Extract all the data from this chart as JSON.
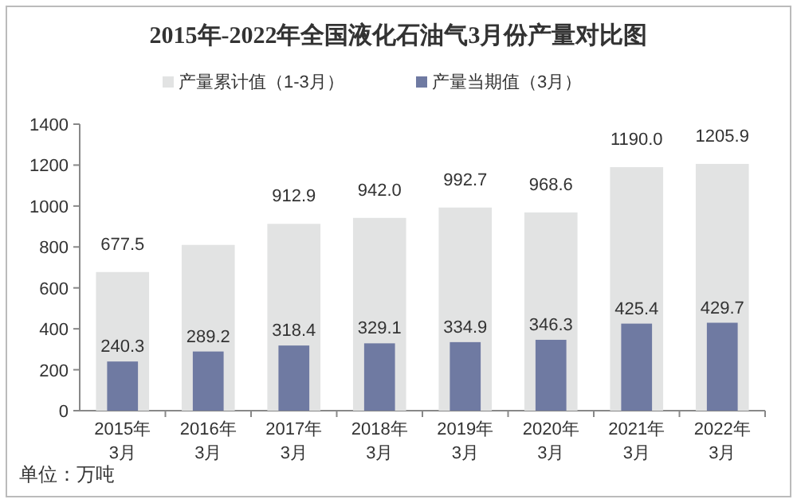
{
  "chart_data": {
    "type": "bar",
    "title": "2015年-2022年全国液化石油气3月份产量对比图",
    "categories": [
      "2015年\n3月",
      "2016年\n3月",
      "2017年\n3月",
      "2018年\n3月",
      "2019年\n3月",
      "2020年\n3月",
      "2021年\n3月",
      "2022年\n3月"
    ],
    "series": [
      {
        "name": "产量累计值（1-3月）",
        "color": "#e2e3e3",
        "values": [
          677.5,
          810,
          912.9,
          942.0,
          992.7,
          968.6,
          1190.0,
          1205.9
        ],
        "value_labels": [
          "677.5",
          null,
          "912.9",
          "942.0",
          "992.7",
          "968.6",
          "1190.0",
          "1205.9"
        ]
      },
      {
        "name": "产量当期值（3月）",
        "color": "#6f7aa2",
        "values": [
          240.3,
          289.2,
          318.4,
          329.1,
          334.9,
          346.3,
          425.4,
          429.7
        ],
        "value_labels": [
          "240.3",
          "289.2",
          "318.4",
          "329.1",
          "334.9",
          "346.3",
          "425.4",
          "429.7"
        ]
      }
    ],
    "ylim": [
      0,
      1400
    ],
    "yticks": [
      0,
      200,
      400,
      600,
      800,
      1000,
      1200,
      1400
    ],
    "grid": false,
    "legend": "top",
    "annotations": [
      "单位：万吨"
    ]
  }
}
